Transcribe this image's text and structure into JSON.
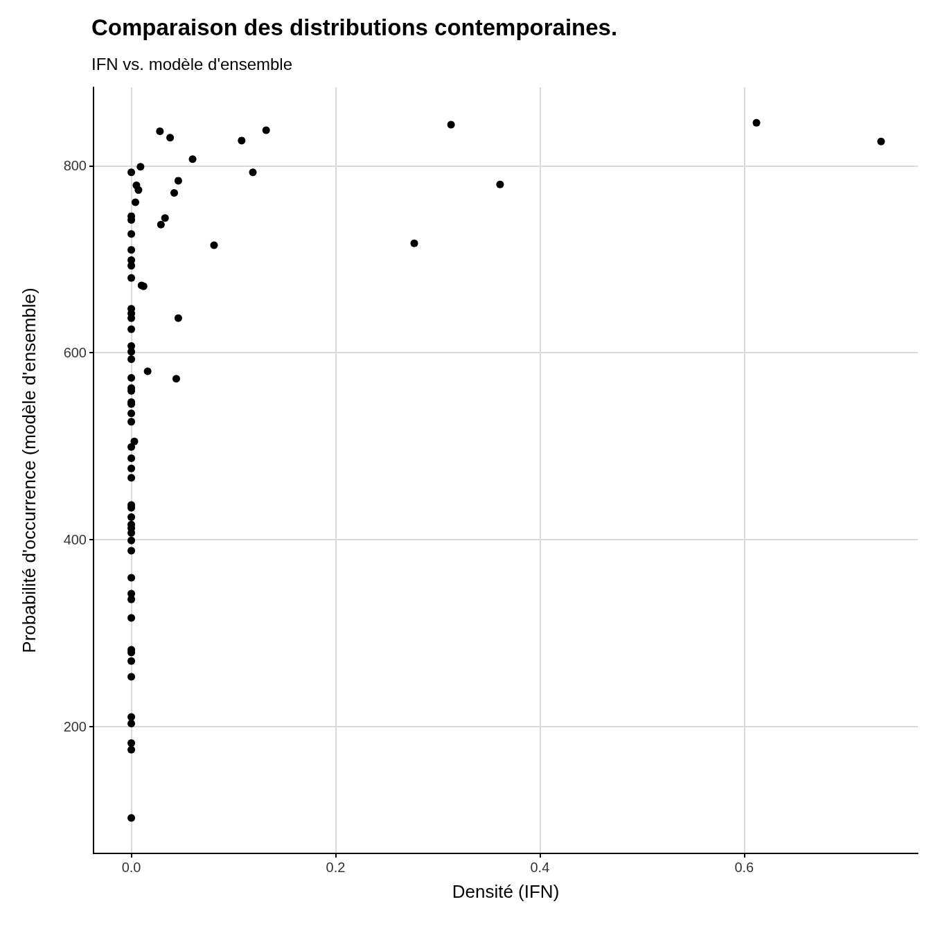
{
  "chart_data": {
    "type": "scatter",
    "title": "Comparaison des distributions contemporaines.",
    "subtitle": "IFN vs. modèle d'ensemble",
    "xlabel": "Densité (IFN)",
    "ylabel": "Probabilité d'occurrence (modèle d'ensemble)",
    "xlim": [
      -0.037,
      0.77
    ],
    "ylim": [
      64,
      884
    ],
    "xticks": [
      {
        "value": 0,
        "label": "0.0"
      },
      0.2,
      0.4,
      0.6
    ],
    "yticks": [
      200,
      400,
      600,
      800
    ],
    "grid": true,
    "marker": "circle",
    "series": [
      {
        "color": "#000000",
        "x": [
          0.028,
          0.038,
          0.108,
          0.132,
          0.313,
          0.612,
          0.734,
          0.06,
          0.009,
          0.119,
          0.046,
          0.005,
          0.007,
          0.042,
          0.361,
          0.004,
          0.033,
          0.029,
          0.081,
          0.277,
          0.01,
          0.012,
          0.046,
          0.016,
          0.044,
          0,
          0,
          0,
          0,
          0,
          0,
          0,
          0,
          0,
          0,
          0,
          0,
          0,
          0,
          0,
          0,
          0,
          0,
          0,
          0,
          0,
          0,
          0.003,
          0,
          0,
          0,
          0,
          0,
          0,
          0,
          0,
          0,
          0,
          0,
          0,
          0,
          0,
          0,
          0,
          0,
          0,
          0,
          0,
          0,
          0,
          0,
          0,
          0
        ],
        "values": [
          837,
          830,
          827,
          838,
          844,
          846,
          826,
          807,
          799,
          793,
          784,
          779,
          774,
          771,
          780,
          761,
          744,
          737,
          715,
          717,
          672,
          671,
          637,
          580,
          572,
          793,
          746,
          742,
          727,
          710,
          699,
          693,
          680,
          647,
          642,
          637,
          625,
          607,
          601,
          593,
          573,
          562,
          559,
          547,
          545,
          535,
          526,
          505,
          499,
          487,
          476,
          466,
          437,
          434,
          424,
          416,
          412,
          407,
          399,
          388,
          359,
          342,
          336,
          316,
          282,
          279,
          270,
          253,
          210,
          203,
          182,
          175,
          102
        ]
      }
    ]
  }
}
